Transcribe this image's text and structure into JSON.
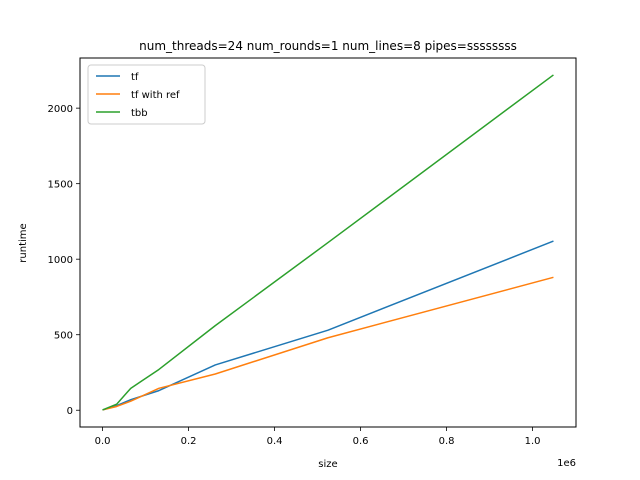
{
  "chart_data": {
    "type": "line",
    "title": "num_threads=24 num_rounds=1 num_lines=8 pipes=ssssssss",
    "xlabel": "size",
    "ylabel": "runtime",
    "x_offset_text": "1e6",
    "xlim": [
      -0.0524288,
      1.1010048
    ],
    "ylim": [
      -111,
      2332
    ],
    "xticks": [
      0.0,
      0.2,
      0.4,
      0.6,
      0.8,
      1.0
    ],
    "xtick_labels": [
      "0.0",
      "0.2",
      "0.4",
      "0.6",
      "0.8",
      "1.0"
    ],
    "yticks": [
      0,
      500,
      1000,
      1500,
      2000
    ],
    "ytick_labels": [
      "0",
      "500",
      "1000",
      "1500",
      "2000"
    ],
    "grid": false,
    "legend_position": "upper left",
    "series": [
      {
        "name": "tf",
        "color": "#1f77b4",
        "x": [
          1e-06,
          0.032768,
          0.065536,
          0.131072,
          0.262144,
          0.524288,
          1.048576
        ],
        "y": [
          2,
          30,
          70,
          130,
          300,
          530,
          1120
        ]
      },
      {
        "name": "tf with ref",
        "color": "#ff7f0e",
        "x": [
          1e-06,
          0.032768,
          0.065536,
          0.131072,
          0.262144,
          0.524288,
          1.048576
        ],
        "y": [
          2,
          25,
          60,
          145,
          240,
          480,
          880
        ]
      },
      {
        "name": "tbb",
        "color": "#2ca02c",
        "x": [
          1e-06,
          0.032768,
          0.065536,
          0.131072,
          0.262144,
          0.524288,
          1.048576
        ],
        "y": [
          2,
          40,
          145,
          270,
          560,
          1110,
          2220
        ]
      }
    ]
  }
}
